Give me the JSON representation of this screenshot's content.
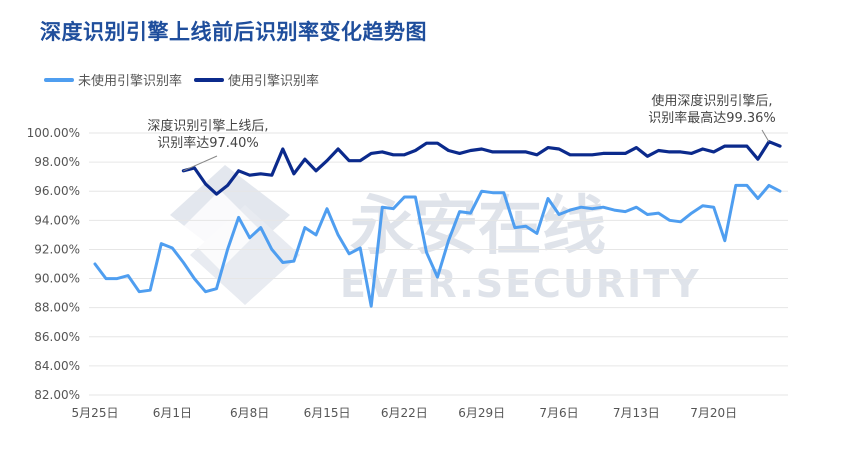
{
  "chart_data": {
    "type": "line",
    "title": "深度识别引擎上线前后识别率变化趋势图",
    "xlabel": "",
    "ylabel": "",
    "ylim": [
      82,
      100
    ],
    "y_ticks": [
      "82.00%",
      "84.00%",
      "86.00%",
      "88.00%",
      "90.00%",
      "92.00%",
      "94.00%",
      "96.00%",
      "98.00%",
      "100.00%"
    ],
    "x_ticks": [
      {
        "index": 0,
        "label": "5月25日"
      },
      {
        "index": 7,
        "label": "6月1日"
      },
      {
        "index": 14,
        "label": "6月8日"
      },
      {
        "index": 21,
        "label": "6月15日"
      },
      {
        "index": 28,
        "label": "6月22日"
      },
      {
        "index": 35,
        "label": "6月29日"
      },
      {
        "index": 42,
        "label": "7月6日"
      },
      {
        "index": 49,
        "label": "7月13日"
      },
      {
        "index": 56,
        "label": "7月20日"
      }
    ],
    "grid": true,
    "legend_position": "top-left",
    "series": [
      {
        "name": "未使用引擎识别率",
        "color": "#4f9ef0",
        "start_index": 0,
        "values": [
          91.0,
          90.0,
          90.0,
          90.2,
          89.1,
          89.2,
          92.4,
          92.1,
          91.1,
          90.0,
          89.1,
          89.3,
          92.0,
          94.2,
          92.8,
          93.5,
          92.0,
          91.1,
          91.2,
          93.5,
          93.0,
          94.8,
          93.0,
          91.7,
          92.1,
          88.1,
          94.9,
          94.8,
          95.6,
          95.6,
          91.8,
          90.1,
          92.6,
          94.6,
          94.5,
          96.0,
          95.9,
          95.9,
          93.5,
          93.6,
          93.1,
          95.5,
          94.4,
          94.7,
          94.9,
          94.8,
          94.9,
          94.7,
          94.6,
          94.9,
          94.4,
          94.5,
          94.0,
          93.9,
          94.5,
          95.0,
          94.9,
          92.6,
          96.4,
          96.4,
          95.5,
          96.4,
          96.0
        ]
      },
      {
        "name": "使用引擎识别率",
        "color": "#0b2a8c",
        "start_index": 8,
        "values": [
          97.4,
          97.6,
          96.5,
          95.8,
          96.4,
          97.4,
          97.1,
          97.2,
          97.1,
          98.9,
          97.2,
          98.2,
          97.4,
          98.1,
          98.9,
          98.1,
          98.1,
          98.6,
          98.7,
          98.5,
          98.5,
          98.8,
          99.3,
          99.3,
          98.8,
          98.6,
          98.8,
          98.9,
          98.7,
          98.7,
          98.7,
          98.7,
          98.5,
          99.0,
          98.9,
          98.5,
          98.5,
          98.5,
          98.6,
          98.6,
          98.6,
          99.0,
          98.4,
          98.8,
          98.7,
          98.7,
          98.6,
          98.9,
          98.7,
          99.1,
          99.1,
          99.1,
          98.2,
          99.4,
          99.1
        ]
      }
    ],
    "annotations": [
      {
        "lines": [
          "深度识别引擎上线后,",
          "识别率达97.40%"
        ],
        "series": 1,
        "point": 0
      },
      {
        "lines": [
          "使用深度识别引擎后,",
          "识别率最高达99.36%"
        ],
        "series": 1,
        "point": 53
      }
    ]
  },
  "watermark": {
    "cn": "永安在线",
    "en": "EVER.SECURITY"
  }
}
